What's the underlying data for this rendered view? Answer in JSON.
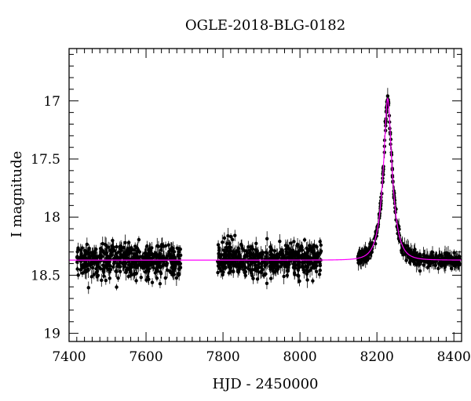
{
  "chart_data": {
    "type": "scatter",
    "title": "OGLE-2018-BLG-0182",
    "xlabel": "HJD - 2450000",
    "ylabel": "I magnitude",
    "xlim": [
      7400,
      8420
    ],
    "ylim": [
      19.07,
      16.55
    ],
    "y_inverted": true,
    "x_ticks": [
      7400,
      7600,
      7800,
      8000,
      8200,
      8400
    ],
    "y_ticks": [
      17,
      17.5,
      18,
      18.5,
      19
    ],
    "y_tick_labels": [
      "17",
      "17.5",
      "18",
      "18.5",
      "19"
    ],
    "grid": false,
    "series": [
      {
        "kind": "observations",
        "color": "#000000",
        "error_bars": true,
        "segments": [
          {
            "x_range": [
              7420,
              7690
            ],
            "baseline_mag": 18.37,
            "scatter_mag": 0.07
          },
          {
            "x_range": [
              7785,
              8055
            ],
            "baseline_mag": 18.37,
            "scatter_mag": 0.07
          },
          {
            "x_range": [
              8150,
              8415
            ],
            "follows_model": true,
            "scatter_mag": 0.03
          }
        ]
      },
      {
        "kind": "model",
        "color": "#ff00ff",
        "type": "line",
        "baseline_mag": 18.37,
        "peak_time": 8228,
        "peak_mag": 16.98,
        "einstein_time_days": 24.5,
        "u0": 0.31
      }
    ]
  }
}
